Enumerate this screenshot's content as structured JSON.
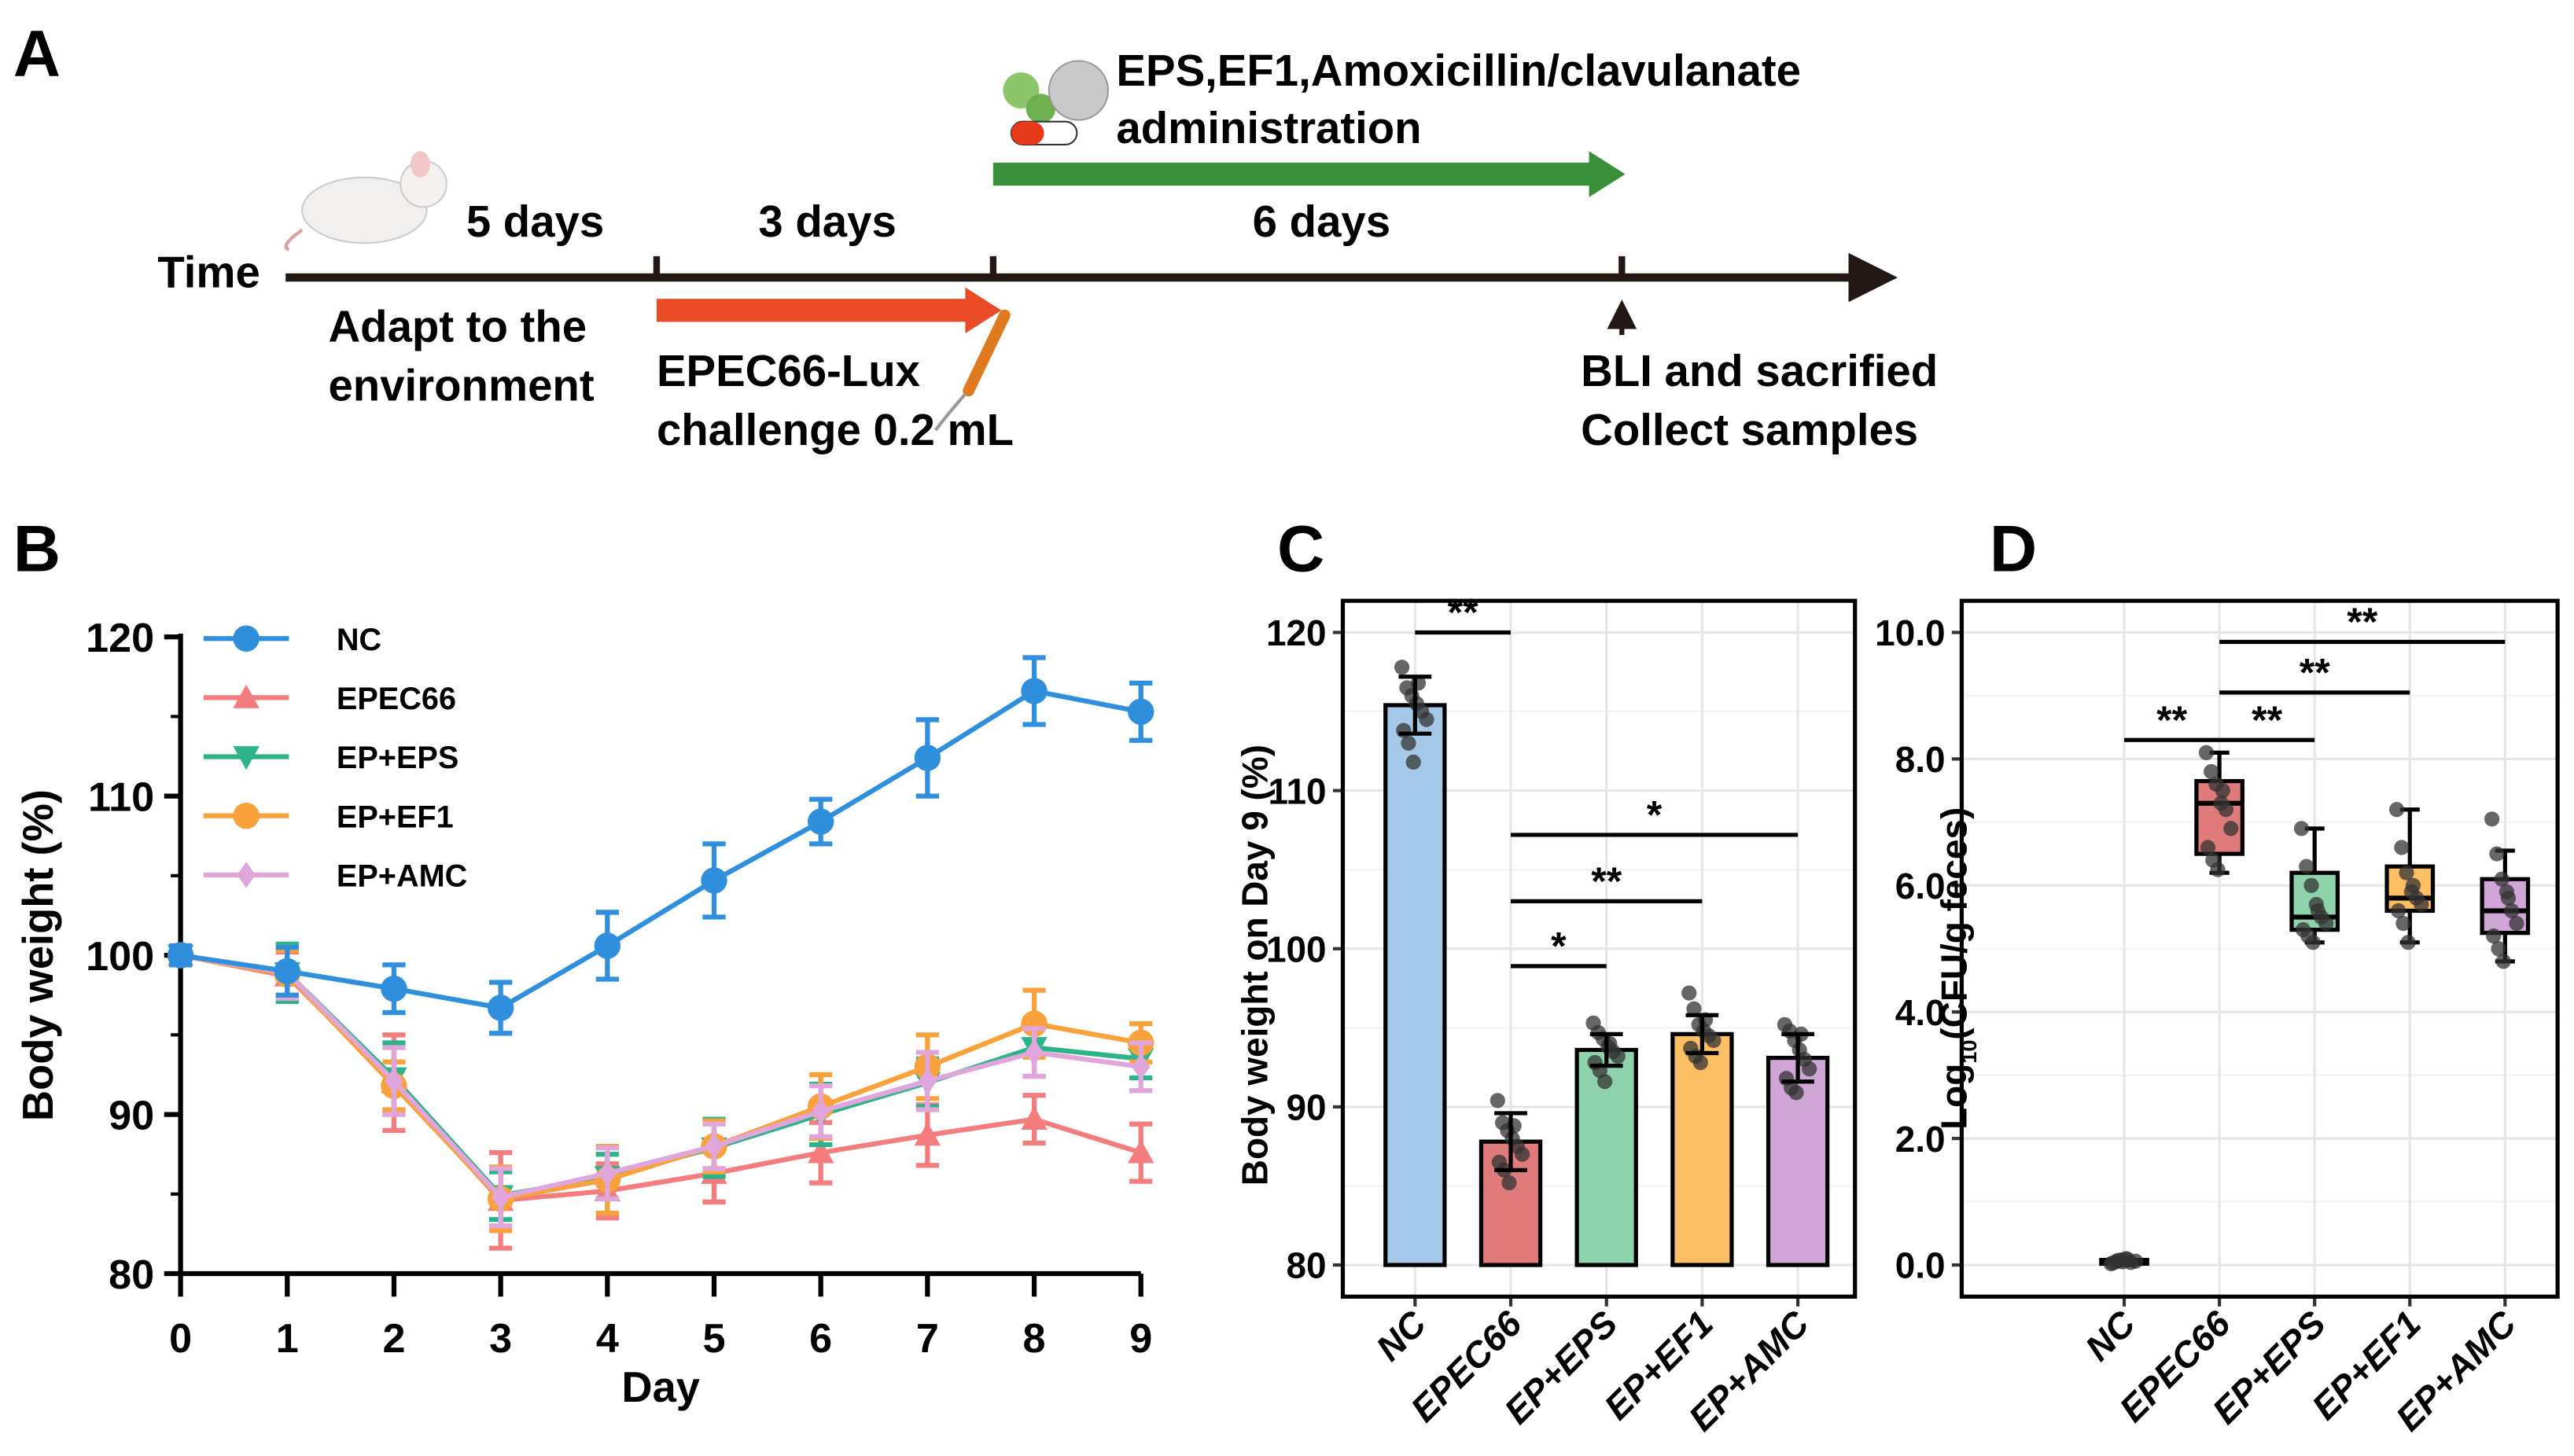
{
  "panelA": {
    "label": "A",
    "time_label": "Time",
    "adapt_days": "5 days",
    "challenge_days": "3 days",
    "treat_days": "6 days",
    "admin_line1": "EPS,EF1,Amoxicillin/clavulanate",
    "admin_line2": "administration",
    "adapt_line1": "Adapt to the",
    "adapt_line2": "environment",
    "challenge_line1": "EPEC66-Lux",
    "challenge_line2": "challenge 0.2 mL",
    "end_line1": "BLI and sacrified",
    "end_line2": "Collect samples",
    "colors": {
      "challenge": "#e84b26",
      "treatment": "#3a8f3a",
      "axis": "#231815"
    }
  },
  "chart_data": [
    {
      "panel": "B",
      "type": "line",
      "xlabel": "Day",
      "ylabel": "Body weight (%)",
      "xlim": [
        0,
        9
      ],
      "ylim": [
        80,
        120
      ],
      "yticks": [
        80,
        90,
        100,
        110,
        120
      ],
      "xticks": [
        0,
        1,
        2,
        3,
        4,
        5,
        6,
        7,
        8,
        9
      ],
      "legend": "top-left",
      "x": [
        0,
        1,
        2,
        3,
        4,
        5,
        6,
        7,
        8,
        9
      ],
      "series": [
        {
          "name": "NC",
          "color": "#2f8fdc",
          "marker": "circle",
          "values": [
            100,
            99,
            97.9,
            96.7,
            100.6,
            104.7,
            108.4,
            112.4,
            116.6,
            115.3
          ],
          "err": [
            0.6,
            1.5,
            1.5,
            1.6,
            2.1,
            2.3,
            1.4,
            2.4,
            2.1,
            1.8
          ]
        },
        {
          "name": "EPEC66",
          "color": "#f47c7c",
          "marker": "triangle-up",
          "values": [
            100,
            98.7,
            92,
            84.6,
            85.2,
            86.3,
            87.6,
            88.7,
            89.7,
            87.6
          ],
          "err": [
            0.5,
            1.5,
            3,
            3,
            1.7,
            1.8,
            1.9,
            1.9,
            1.5,
            1.8
          ]
        },
        {
          "name": "EP+EPS",
          "color": "#2db38a",
          "marker": "triangle-down",
          "values": [
            100,
            98.9,
            92.3,
            84.9,
            86.1,
            87.9,
            90,
            92,
            94.2,
            93.5
          ],
          "err": [
            0.6,
            1.8,
            2.2,
            1.5,
            1.4,
            1.8,
            1.9,
            1.5,
            1.8,
            1.2
          ]
        },
        {
          "name": "EP+EF1",
          "color": "#f9a13a",
          "marker": "circle",
          "values": [
            100,
            98.8,
            91.8,
            84.7,
            85.9,
            88,
            90.5,
            93,
            95.7,
            94.5
          ],
          "err": [
            0.5,
            1.5,
            1.5,
            2,
            2.1,
            1.6,
            2,
            2,
            2.1,
            1.2
          ]
        },
        {
          "name": "EP+AMC",
          "color": "#e0a6dc",
          "marker": "diamond",
          "values": [
            100,
            98.9,
            92.1,
            84.8,
            86.3,
            88,
            90.2,
            92.1,
            93.9,
            93
          ],
          "err": [
            0.4,
            1.6,
            2.1,
            1.8,
            1.6,
            1.4,
            1.6,
            1.8,
            1.5,
            1.5
          ]
        }
      ]
    },
    {
      "panel": "C",
      "type": "bar",
      "ylabel": "Body weight on Day 9 (%)",
      "ylim": [
        78,
        122
      ],
      "yticks": [
        80,
        90,
        100,
        110,
        120
      ],
      "categories": [
        "NC",
        "EPEC66",
        "EP+EPS",
        "EP+EF1",
        "EP+AMC"
      ],
      "colors": [
        "#a6c8e8",
        "#e07b7b",
        "#8ed3ab",
        "#fdbf63",
        "#cfa6d6"
      ],
      "values": [
        115.4,
        87.8,
        93.6,
        94.6,
        93.1
      ],
      "err": [
        1.8,
        1.8,
        1.0,
        1.2,
        1.5
      ],
      "points": [
        [
          117.8,
          116.5,
          116,
          115.5,
          115,
          114.5,
          113.8,
          113,
          111.8,
          116.8
        ],
        [
          90.4,
          89,
          88.5,
          88,
          87.5,
          87,
          86.5,
          86,
          85.2,
          88.8
        ],
        [
          95.3,
          94.7,
          94.3,
          93.8,
          93.5,
          93.2,
          92.8,
          92.3,
          91.6,
          94
        ],
        [
          97.2,
          96.2,
          95.2,
          94.8,
          94.5,
          94.2,
          93.7,
          93.2,
          92.8,
          95.5
        ],
        [
          95.2,
          94.8,
          94.2,
          93.6,
          93,
          92.4,
          91.8,
          91.2,
          90.9,
          94.6
        ]
      ],
      "significance": [
        {
          "from": 0,
          "to": 1,
          "y": 120,
          "label": "**"
        },
        {
          "from": 1,
          "to": 2,
          "y": 98.9,
          "label": "*"
        },
        {
          "from": 1,
          "to": 3,
          "y": 103,
          "label": "**"
        },
        {
          "from": 1,
          "to": 4,
          "y": 107.2,
          "label": "*"
        }
      ]
    },
    {
      "panel": "D",
      "type": "box",
      "ylabel_main": "Log",
      "ylabel_sub": "10",
      "ylabel_rest": "(CFU/g feces)",
      "ylim": [
        -0.5,
        10.5
      ],
      "yticks": [
        "0.0",
        "2.0",
        "4.0",
        "6.0",
        "8.0",
        "10.0"
      ],
      "categories": [
        "NC",
        "EPEC66",
        "EP+EPS",
        "EP+EF1",
        "EP+AMC"
      ],
      "colors": [
        "#a6c8e8",
        "#e07b7b",
        "#8ed3ab",
        "#fdbf63",
        "#cfa6d6"
      ],
      "boxes": [
        {
          "min": 0.0,
          "q1": 0.02,
          "median": 0.05,
          "q3": 0.08,
          "max": 0.1
        },
        {
          "min": 6.2,
          "q1": 6.5,
          "median": 7.3,
          "q3": 7.65,
          "max": 8.1
        },
        {
          "min": 5.1,
          "q1": 5.3,
          "median": 5.5,
          "q3": 6.2,
          "max": 6.9
        },
        {
          "min": 5.1,
          "q1": 5.6,
          "median": 5.8,
          "q3": 6.3,
          "max": 7.2
        },
        {
          "min": 4.8,
          "q1": 5.25,
          "median": 5.6,
          "q3": 6.1,
          "max": 6.55
        }
      ],
      "points": [
        [
          0.02,
          0.05,
          0.08,
          0.1,
          0.04,
          0.06,
          0.03,
          0.07,
          0.05,
          0.09
        ],
        [
          8.1,
          7.8,
          7.6,
          7.3,
          7.2,
          6.9,
          6.6,
          6.4,
          6.25,
          7.5
        ],
        [
          6.9,
          6.3,
          6.0,
          5.7,
          5.5,
          5.4,
          5.3,
          5.2,
          5.1,
          5.6
        ],
        [
          7.2,
          6.6,
          6.2,
          5.9,
          5.8,
          5.7,
          5.6,
          5.4,
          5.1,
          6.0
        ],
        [
          7.05,
          6.5,
          6.1,
          5.9,
          5.6,
          5.4,
          5.2,
          5.0,
          4.8,
          5.8
        ]
      ],
      "significance": [
        {
          "from": 0,
          "to": 1,
          "y": 8.3,
          "label": "**"
        },
        {
          "from": 1,
          "to": 2,
          "y": 8.3,
          "label": "**"
        },
        {
          "from": 1,
          "to": 3,
          "y": 9.05,
          "label": "**"
        },
        {
          "from": 1,
          "to": 4,
          "y": 9.85,
          "label": "**"
        }
      ]
    }
  ],
  "panel_labels": {
    "B": "B",
    "C": "C",
    "D": "D"
  }
}
